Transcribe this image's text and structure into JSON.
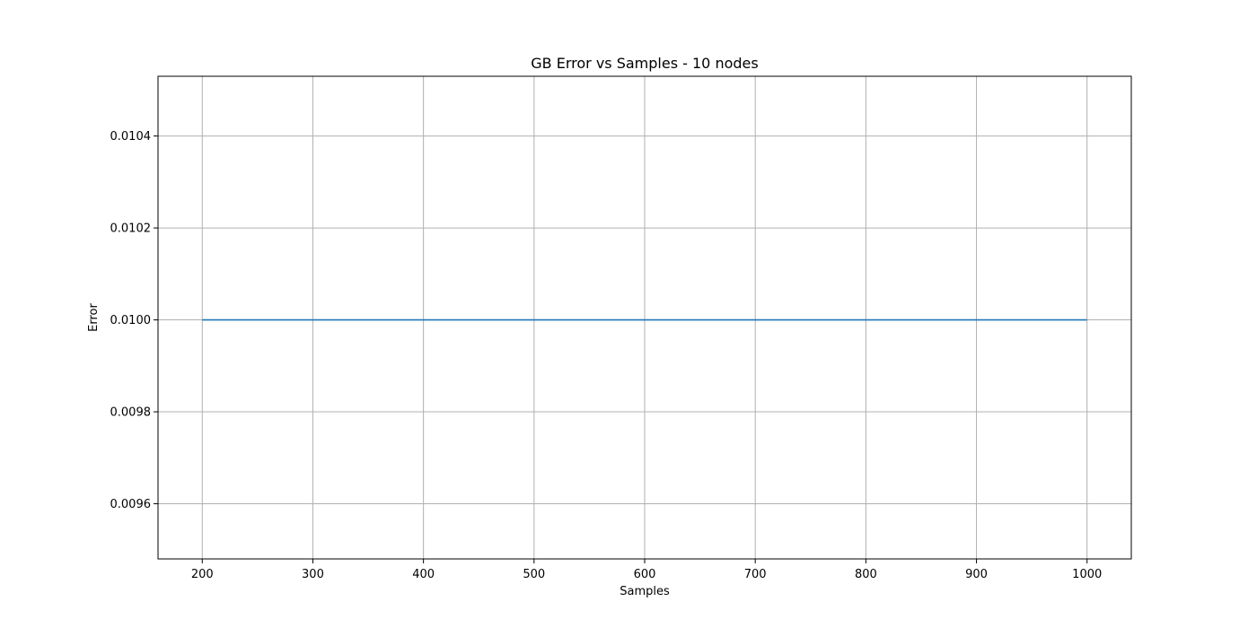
{
  "chart_data": {
    "type": "line",
    "title": "GB Error vs Samples - 10 nodes",
    "xlabel": "Samples",
    "ylabel": "Error",
    "xlim": [
      160,
      1040
    ],
    "ylim": [
      0.00948,
      0.01053
    ],
    "xticks": [
      200,
      300,
      400,
      500,
      600,
      700,
      800,
      900,
      1000
    ],
    "xtick_labels": [
      "200",
      "300",
      "400",
      "500",
      "600",
      "700",
      "800",
      "900",
      "1000"
    ],
    "yticks": [
      0.0096,
      0.0098,
      0.01,
      0.0102,
      0.0104
    ],
    "ytick_labels": [
      "0.0096",
      "0.0098",
      "0.0100",
      "0.0102",
      "0.0104"
    ],
    "grid": true,
    "series": [
      {
        "color": "#1f77b4",
        "x": [
          200,
          300,
          400,
          500,
          600,
          700,
          800,
          900,
          1000
        ],
        "y": [
          0.01,
          0.01,
          0.01,
          0.01,
          0.01,
          0.01,
          0.01,
          0.01,
          0.01
        ]
      }
    ]
  }
}
